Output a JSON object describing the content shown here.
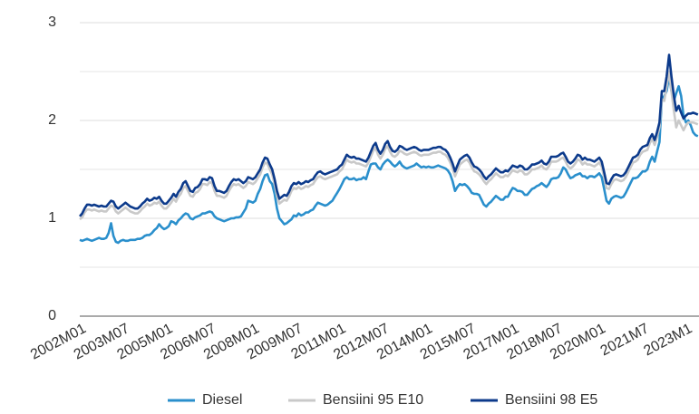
{
  "chart_data": {
    "type": "line",
    "categories": [
      "2002M01",
      null,
      null,
      null,
      null,
      null,
      null,
      null,
      null,
      null,
      null,
      null,
      null,
      null,
      null,
      null,
      null,
      null,
      "2003M07",
      null,
      null,
      null,
      null,
      null,
      null,
      null,
      null,
      null,
      null,
      null,
      null,
      null,
      null,
      null,
      null,
      null,
      "2005M01",
      null,
      null,
      null,
      null,
      null,
      null,
      null,
      null,
      null,
      null,
      null,
      null,
      null,
      null,
      null,
      null,
      null,
      "2006M07",
      null,
      null,
      null,
      null,
      null,
      null,
      null,
      null,
      null,
      null,
      null,
      null,
      null,
      null,
      null,
      null,
      null,
      "2008M01",
      null,
      null,
      null,
      null,
      null,
      null,
      null,
      null,
      null,
      null,
      null,
      null,
      null,
      null,
      null,
      null,
      null,
      "2009M07",
      null,
      null,
      null,
      null,
      null,
      null,
      null,
      null,
      null,
      null,
      null,
      null,
      null,
      null,
      null,
      null,
      null,
      "2011M01",
      null,
      null,
      null,
      null,
      null,
      null,
      null,
      null,
      null,
      null,
      null,
      null,
      null,
      null,
      null,
      null,
      null,
      "2012M07",
      null,
      null,
      null,
      null,
      null,
      null,
      null,
      null,
      null,
      null,
      null,
      null,
      null,
      null,
      null,
      null,
      null,
      "2014M01",
      null,
      null,
      null,
      null,
      null,
      null,
      null,
      null,
      null,
      null,
      null,
      null,
      null,
      null,
      null,
      null,
      null,
      "2015M07",
      null,
      null,
      null,
      null,
      null,
      null,
      null,
      null,
      null,
      null,
      null,
      null,
      null,
      null,
      null,
      null,
      null,
      "2017M01",
      null,
      null,
      null,
      null,
      null,
      null,
      null,
      null,
      null,
      null,
      null,
      null,
      null,
      null,
      null,
      null,
      null,
      "2018M07",
      null,
      null,
      null,
      null,
      null,
      null,
      null,
      null,
      null,
      null,
      null,
      null,
      null,
      null,
      null,
      null,
      null,
      "2020M01",
      null,
      null,
      null,
      null,
      null,
      null,
      null,
      null,
      null,
      null,
      null,
      null,
      null,
      null,
      null,
      null,
      null,
      "2021M7",
      null,
      null,
      null,
      null,
      null,
      null,
      null,
      null,
      null,
      null,
      null,
      null,
      null,
      null,
      null,
      null,
      null,
      "2023M1",
      null,
      null,
      null,
      null,
      null
    ],
    "series": [
      {
        "name": "Diesel",
        "color": "#2a8fcc",
        "values": [
          0.78,
          0.77,
          0.78,
          0.79,
          0.78,
          0.77,
          0.78,
          0.79,
          0.8,
          0.79,
          0.79,
          0.8,
          0.85,
          0.95,
          0.82,
          0.76,
          0.75,
          0.77,
          0.78,
          0.77,
          0.77,
          0.78,
          0.78,
          0.78,
          0.79,
          0.79,
          0.8,
          0.82,
          0.83,
          0.83,
          0.85,
          0.88,
          0.9,
          0.94,
          0.91,
          0.89,
          0.9,
          0.92,
          0.97,
          0.96,
          0.94,
          0.98,
          1.0,
          1.03,
          1.05,
          1.04,
          1.0,
          0.99,
          1.01,
          1.02,
          1.03,
          1.05,
          1.05,
          1.06,
          1.07,
          1.06,
          1.02,
          1.0,
          0.99,
          0.98,
          0.97,
          0.98,
          0.99,
          1.0,
          1.0,
          1.01,
          1.01,
          1.02,
          1.06,
          1.1,
          1.18,
          1.17,
          1.16,
          1.18,
          1.25,
          1.3,
          1.38,
          1.44,
          1.45,
          1.38,
          1.35,
          1.25,
          1.1,
          1.0,
          0.97,
          0.94,
          0.95,
          0.97,
          0.99,
          1.03,
          1.02,
          1.05,
          1.03,
          1.04,
          1.06,
          1.06,
          1.08,
          1.09,
          1.13,
          1.16,
          1.15,
          1.14,
          1.13,
          1.14,
          1.16,
          1.18,
          1.22,
          1.26,
          1.3,
          1.35,
          1.4,
          1.42,
          1.4,
          1.4,
          1.41,
          1.39,
          1.4,
          1.4,
          1.42,
          1.4,
          1.48,
          1.55,
          1.56,
          1.56,
          1.52,
          1.5,
          1.55,
          1.58,
          1.6,
          1.58,
          1.55,
          1.53,
          1.55,
          1.58,
          1.54,
          1.52,
          1.51,
          1.52,
          1.53,
          1.54,
          1.56,
          1.54,
          1.52,
          1.53,
          1.52,
          1.53,
          1.52,
          1.52,
          1.53,
          1.54,
          1.53,
          1.52,
          1.51,
          1.49,
          1.45,
          1.38,
          1.28,
          1.32,
          1.35,
          1.34,
          1.35,
          1.33,
          1.3,
          1.26,
          1.25,
          1.25,
          1.24,
          1.19,
          1.14,
          1.12,
          1.15,
          1.17,
          1.2,
          1.23,
          1.21,
          1.19,
          1.19,
          1.22,
          1.22,
          1.27,
          1.31,
          1.3,
          1.28,
          1.28,
          1.27,
          1.24,
          1.24,
          1.27,
          1.3,
          1.31,
          1.33,
          1.34,
          1.36,
          1.34,
          1.32,
          1.35,
          1.4,
          1.41,
          1.41,
          1.42,
          1.46,
          1.52,
          1.5,
          1.45,
          1.41,
          1.42,
          1.44,
          1.45,
          1.46,
          1.43,
          1.43,
          1.41,
          1.43,
          1.43,
          1.42,
          1.44,
          1.46,
          1.42,
          1.3,
          1.18,
          1.15,
          1.2,
          1.22,
          1.23,
          1.22,
          1.21,
          1.22,
          1.26,
          1.31,
          1.36,
          1.41,
          1.41,
          1.42,
          1.45,
          1.48,
          1.48,
          1.5,
          1.58,
          1.63,
          1.58,
          1.68,
          1.78,
          2.22,
          2.25,
          2.3,
          2.45,
          2.3,
          2.2,
          2.28,
          2.35,
          2.25,
          2.05,
          1.98,
          2.0,
          1.95,
          1.88,
          1.85,
          1.84
        ]
      },
      {
        "name": "Bensiini 95 E10",
        "color": "#c9c9c9",
        "values": [
          0.99,
          1.01,
          1.06,
          1.09,
          1.09,
          1.08,
          1.09,
          1.08,
          1.07,
          1.08,
          1.07,
          1.07,
          1.1,
          1.13,
          1.12,
          1.07,
          1.05,
          1.07,
          1.09,
          1.11,
          1.09,
          1.07,
          1.06,
          1.05,
          1.05,
          1.07,
          1.1,
          1.12,
          1.15,
          1.13,
          1.14,
          1.16,
          1.15,
          1.17,
          1.13,
          1.1,
          1.1,
          1.13,
          1.16,
          1.2,
          1.17,
          1.22,
          1.25,
          1.31,
          1.33,
          1.28,
          1.23,
          1.22,
          1.26,
          1.27,
          1.3,
          1.35,
          1.35,
          1.34,
          1.37,
          1.36,
          1.28,
          1.23,
          1.23,
          1.22,
          1.21,
          1.23,
          1.28,
          1.32,
          1.35,
          1.34,
          1.35,
          1.33,
          1.31,
          1.33,
          1.37,
          1.36,
          1.35,
          1.37,
          1.41,
          1.45,
          1.52,
          1.57,
          1.56,
          1.5,
          1.45,
          1.35,
          1.23,
          1.15,
          1.17,
          1.19,
          1.18,
          1.22,
          1.28,
          1.31,
          1.3,
          1.32,
          1.3,
          1.31,
          1.33,
          1.32,
          1.34,
          1.35,
          1.39,
          1.42,
          1.43,
          1.41,
          1.4,
          1.41,
          1.42,
          1.43,
          1.44,
          1.45,
          1.48,
          1.5,
          1.55,
          1.6,
          1.58,
          1.57,
          1.58,
          1.56,
          1.56,
          1.55,
          1.54,
          1.53,
          1.57,
          1.63,
          1.69,
          1.72,
          1.65,
          1.61,
          1.65,
          1.71,
          1.74,
          1.68,
          1.64,
          1.63,
          1.65,
          1.69,
          1.68,
          1.66,
          1.65,
          1.66,
          1.67,
          1.68,
          1.67,
          1.65,
          1.64,
          1.65,
          1.65,
          1.65,
          1.66,
          1.67,
          1.67,
          1.68,
          1.68,
          1.66,
          1.65,
          1.62,
          1.57,
          1.51,
          1.43,
          1.49,
          1.55,
          1.57,
          1.59,
          1.6,
          1.57,
          1.52,
          1.48,
          1.47,
          1.45,
          1.42,
          1.38,
          1.35,
          1.38,
          1.4,
          1.43,
          1.46,
          1.44,
          1.42,
          1.42,
          1.44,
          1.43,
          1.46,
          1.49,
          1.48,
          1.47,
          1.49,
          1.48,
          1.45,
          1.45,
          1.47,
          1.5,
          1.5,
          1.51,
          1.52,
          1.54,
          1.51,
          1.5,
          1.53,
          1.58,
          1.58,
          1.58,
          1.59,
          1.61,
          1.62,
          1.58,
          1.53,
          1.51,
          1.53,
          1.56,
          1.6,
          1.59,
          1.55,
          1.57,
          1.55,
          1.55,
          1.54,
          1.53,
          1.55,
          1.57,
          1.53,
          1.42,
          1.31,
          1.3,
          1.35,
          1.39,
          1.4,
          1.39,
          1.38,
          1.39,
          1.42,
          1.47,
          1.52,
          1.57,
          1.58,
          1.6,
          1.65,
          1.68,
          1.69,
          1.7,
          1.77,
          1.81,
          1.75,
          1.83,
          1.93,
          2.22,
          2.2,
          2.35,
          2.5,
          2.3,
          2.1,
          1.93,
          2.0,
          1.95,
          1.9,
          1.95,
          1.98,
          1.98,
          1.98,
          1.97,
          1.96
        ]
      },
      {
        "name": "Bensiini 98 E5",
        "color": "#0c3a8b",
        "values": [
          1.02,
          1.05,
          1.1,
          1.14,
          1.14,
          1.13,
          1.14,
          1.13,
          1.12,
          1.13,
          1.12,
          1.12,
          1.15,
          1.18,
          1.17,
          1.12,
          1.1,
          1.12,
          1.14,
          1.16,
          1.14,
          1.12,
          1.11,
          1.1,
          1.1,
          1.12,
          1.15,
          1.17,
          1.2,
          1.18,
          1.19,
          1.21,
          1.2,
          1.22,
          1.18,
          1.15,
          1.15,
          1.18,
          1.21,
          1.25,
          1.22,
          1.27,
          1.3,
          1.36,
          1.38,
          1.33,
          1.28,
          1.27,
          1.31,
          1.32,
          1.35,
          1.4,
          1.4,
          1.39,
          1.42,
          1.41,
          1.33,
          1.28,
          1.28,
          1.27,
          1.26,
          1.28,
          1.33,
          1.37,
          1.4,
          1.39,
          1.4,
          1.38,
          1.36,
          1.38,
          1.42,
          1.41,
          1.4,
          1.42,
          1.46,
          1.5,
          1.57,
          1.62,
          1.61,
          1.55,
          1.5,
          1.4,
          1.28,
          1.2,
          1.22,
          1.24,
          1.23,
          1.27,
          1.33,
          1.36,
          1.35,
          1.37,
          1.35,
          1.36,
          1.38,
          1.37,
          1.39,
          1.4,
          1.44,
          1.47,
          1.48,
          1.46,
          1.45,
          1.46,
          1.47,
          1.48,
          1.49,
          1.5,
          1.53,
          1.55,
          1.6,
          1.65,
          1.63,
          1.62,
          1.63,
          1.61,
          1.61,
          1.6,
          1.59,
          1.58,
          1.62,
          1.68,
          1.74,
          1.77,
          1.7,
          1.66,
          1.7,
          1.76,
          1.79,
          1.73,
          1.69,
          1.68,
          1.7,
          1.74,
          1.73,
          1.71,
          1.7,
          1.71,
          1.72,
          1.73,
          1.72,
          1.7,
          1.69,
          1.7,
          1.7,
          1.7,
          1.71,
          1.72,
          1.72,
          1.73,
          1.73,
          1.71,
          1.7,
          1.67,
          1.62,
          1.56,
          1.48,
          1.54,
          1.6,
          1.62,
          1.64,
          1.65,
          1.62,
          1.57,
          1.53,
          1.52,
          1.5,
          1.47,
          1.43,
          1.4,
          1.43,
          1.45,
          1.48,
          1.51,
          1.49,
          1.47,
          1.47,
          1.49,
          1.48,
          1.51,
          1.54,
          1.53,
          1.52,
          1.54,
          1.53,
          1.5,
          1.5,
          1.52,
          1.55,
          1.55,
          1.56,
          1.57,
          1.59,
          1.56,
          1.55,
          1.58,
          1.63,
          1.63,
          1.63,
          1.64,
          1.66,
          1.67,
          1.63,
          1.58,
          1.56,
          1.58,
          1.61,
          1.65,
          1.64,
          1.6,
          1.62,
          1.6,
          1.6,
          1.59,
          1.58,
          1.6,
          1.62,
          1.58,
          1.47,
          1.36,
          1.35,
          1.4,
          1.44,
          1.45,
          1.44,
          1.43,
          1.44,
          1.47,
          1.52,
          1.57,
          1.62,
          1.63,
          1.65,
          1.7,
          1.73,
          1.74,
          1.75,
          1.82,
          1.86,
          1.8,
          1.88,
          1.98,
          2.3,
          2.3,
          2.45,
          2.67,
          2.45,
          2.25,
          2.1,
          2.15,
          2.08,
          2.02,
          2.05,
          2.07,
          2.07,
          2.08,
          2.07,
          2.06
        ]
      }
    ],
    "ylim": [
      0,
      3
    ],
    "yticks": [
      0,
      1,
      2,
      3
    ],
    "minor_yticks": [
      0.5,
      1.5,
      2.5
    ],
    "grid": true,
    "legend": "bottom"
  }
}
